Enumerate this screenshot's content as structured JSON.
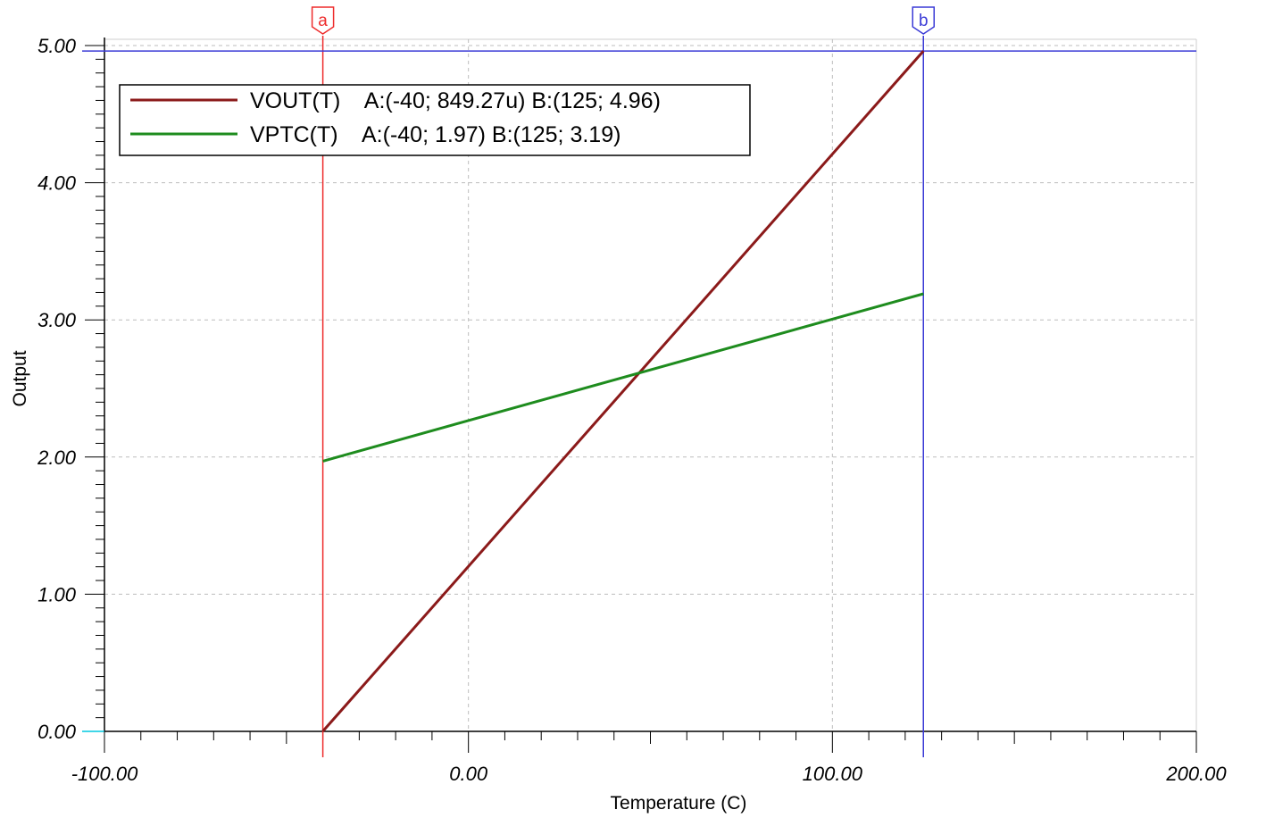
{
  "chart_data": {
    "type": "line",
    "xlabel": "Temperature (C)",
    "ylabel": "Output",
    "xlim": [
      -100,
      200
    ],
    "ylim": [
      0,
      5
    ],
    "x_ticks": [
      -100,
      0,
      100,
      200
    ],
    "x_tick_labels": [
      "-100.00",
      "0.00",
      "100.00",
      "200.00"
    ],
    "y_ticks": [
      0,
      1,
      2,
      3,
      4,
      5
    ],
    "y_tick_labels": [
      "0.00",
      "1.00",
      "2.00",
      "3.00",
      "4.00",
      "5.00"
    ],
    "grid": true,
    "legend_position": "top-left",
    "series": [
      {
        "name": "VOUT(T)",
        "color": "#8b1a1a",
        "legend_text": "VOUT(T)    A:(-40; 849.27u) B:(125; 4.96)",
        "x": [
          -40,
          125
        ],
        "y": [
          0.00084927,
          4.96
        ]
      },
      {
        "name": "VPTC(T)",
        "color": "#1e8c1e",
        "legend_text": "VPTC(T)    A:(-40; 1.97) B:(125; 3.19)",
        "x": [
          -40,
          125
        ],
        "y": [
          1.97,
          3.19
        ]
      }
    ],
    "cursors": [
      {
        "label": "a",
        "x": -40,
        "color": "#ee2b2b"
      },
      {
        "label": "b",
        "x": 125,
        "color": "#3a3ad6",
        "y": 4.96
      }
    ]
  }
}
